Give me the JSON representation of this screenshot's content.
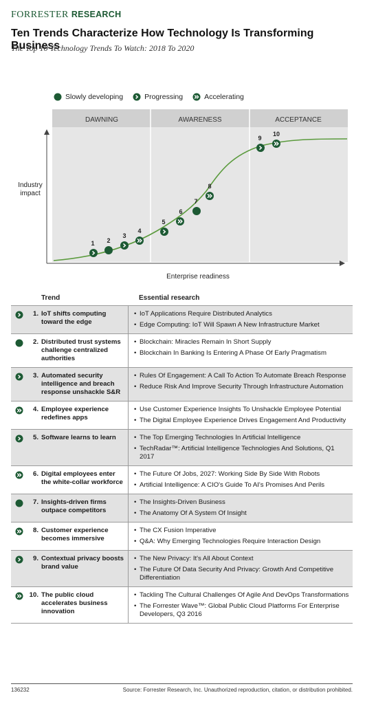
{
  "brand": {
    "part1": "FORRESTER",
    "part2": "RESEARCH"
  },
  "title": "Ten Trends Characterize How Technology Is Transforming Business",
  "subtitle": "The Top 10 Technology Trends To Watch: 2018 To 2020",
  "legend": [
    {
      "key": "slow",
      "label": "Slowly developing"
    },
    {
      "key": "progress",
      "label": "Progressing"
    },
    {
      "key": "accel",
      "label": "Accelerating"
    }
  ],
  "chart": {
    "phases": [
      "DAWNING",
      "AWARENESS",
      "ACCEPTANCE"
    ],
    "ylabel_line1": "Industry",
    "ylabel_line2": "impact",
    "xlabel": "Enterprise readiness",
    "points": [
      {
        "label": "1",
        "status": "progress"
      },
      {
        "label": "2",
        "status": "slow"
      },
      {
        "label": "3",
        "status": "progress"
      },
      {
        "label": "4",
        "status": "accel"
      },
      {
        "label": "5",
        "status": "progress"
      },
      {
        "label": "6",
        "status": "accel"
      },
      {
        "label": "7",
        "status": "slow"
      },
      {
        "label": "8",
        "status": "accel"
      },
      {
        "label": "9",
        "status": "progress"
      },
      {
        "label": "10",
        "status": "accel"
      }
    ],
    "colors": {
      "green": "#1d5a34",
      "curve": "#5a9a3c",
      "panel": "#e6e6e6",
      "header": "#d0d0d0"
    }
  },
  "table": {
    "col_trend": "Trend",
    "col_research": "Essential research",
    "rows": [
      {
        "num": "1.",
        "status": "progress",
        "trend": "IoT shifts computing toward the edge",
        "research": [
          "IoT Applications Require Distributed Analytics",
          "Edge Computing: IoT Will Spawn A New Infrastructure Market"
        ]
      },
      {
        "num": "2.",
        "status": "slow",
        "trend": "Distributed trust systems challenge centralized authorities",
        "research": [
          "Blockchain: Miracles Remain In Short Supply",
          "Blockchain In Banking Is Entering A Phase Of Early Pragmatism"
        ]
      },
      {
        "num": "3.",
        "status": "progress",
        "trend": "Automated security intelligence and breach response unshackle S&R",
        "research": [
          "Rules Of Engagement: A Call To Action To Automate Breach Response",
          "Reduce Risk And Improve Security Through Infrastructure Automation"
        ]
      },
      {
        "num": "4.",
        "status": "accel",
        "trend": "Employee experience redefines apps",
        "research": [
          "Use Customer Experience Insights To Unshackle Employee Potential",
          "The Digital Employee Experience Drives Engagement And Productivity"
        ]
      },
      {
        "num": "5.",
        "status": "progress",
        "trend": "Software learns to learn",
        "research": [
          "The Top Emerging Technologies In Artificial Intelligence",
          "TechRadar™: Artificial Intelligence Technologies And Solutions, Q1 2017"
        ]
      },
      {
        "num": "6.",
        "status": "accel",
        "trend": "Digital employees enter the white-collar workforce",
        "research": [
          "The Future Of Jobs, 2027: Working Side By Side With Robots",
          "Artificial Intelligence: A CIO's Guide To AI's Promises And Perils"
        ]
      },
      {
        "num": "7.",
        "status": "slow",
        "trend": "Insights-driven firms outpace competitors",
        "research": [
          "The Insights-Driven Business",
          "The Anatomy Of A System Of Insight"
        ]
      },
      {
        "num": "8.",
        "status": "accel",
        "trend": "Customer experience becomes immersive",
        "research": [
          "The CX Fusion Imperative",
          "Q&A: Why Emerging Technologies Require Interaction Design"
        ]
      },
      {
        "num": "9.",
        "status": "progress",
        "trend": "Contextual privacy boosts brand value",
        "research": [
          "The New Privacy: It's All About Context",
          "The Future Of Data Security And Privacy: Growth And Competitive Differentiation"
        ]
      },
      {
        "num": "10.",
        "status": "accel",
        "trend": "The public cloud accelerates business innovation",
        "research": [
          "Tackling The Cultural Challenges Of Agile And DevOps Transformations",
          "The Forrester Wave™: Global Public Cloud Platforms For Enterprise Developers, Q3 2016"
        ]
      }
    ]
  },
  "footer": {
    "id": "136232",
    "source": "Source: Forrester Research, Inc. Unauthorized reproduction, citation, or distribution prohibited."
  }
}
